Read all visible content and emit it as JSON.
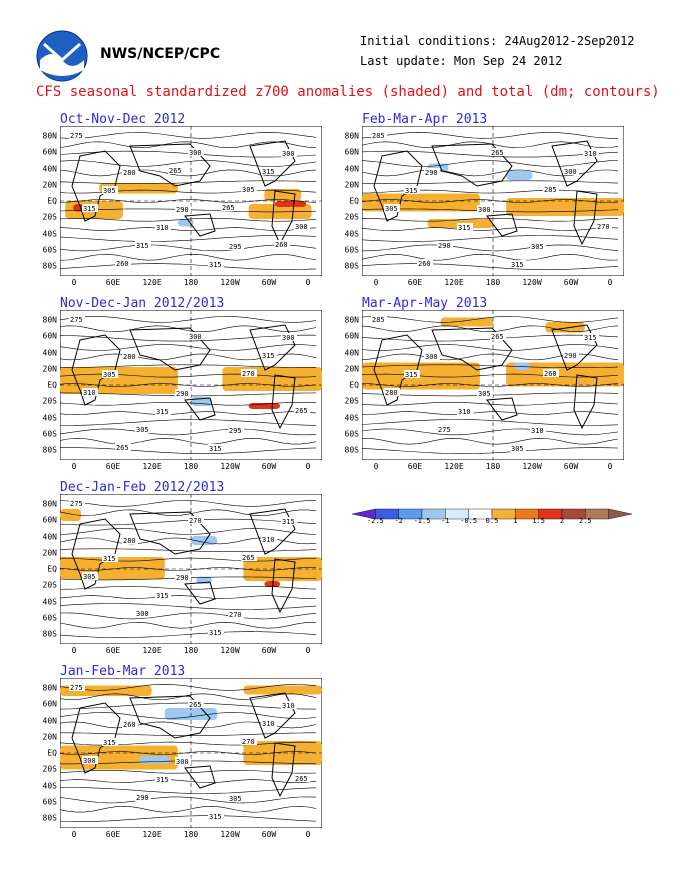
{
  "header": {
    "agency": "NWS/NCEP/CPC",
    "initial_conditions": "Initial conditions: 24Aug2012-2Sep2012",
    "last_update": "Last update: Mon Sep 24 2012",
    "subtitle": "CFS seasonal standardized z700 anomalies (shaded) and total (dm; contours)"
  },
  "colors": {
    "title_blue": "#2a2adf",
    "subtitle_red": "#e0101a",
    "positive_anomaly": "#f5b032",
    "strong_positive": "#e2321a",
    "negative_anomaly": "#9ec8f0"
  },
  "latitude_labels": [
    "80N",
    "60N",
    "40N",
    "20N",
    "EQ",
    "20S",
    "40S",
    "60S",
    "80S"
  ],
  "longitude_labels": [
    "0",
    "60E",
    "120E",
    "180",
    "120W",
    "60W",
    "0"
  ],
  "legend": {
    "values": [
      "-2.5",
      "-2",
      "-1.5",
      "-1",
      "-0.5",
      "0.5",
      "1",
      "1.5",
      "2",
      "2.5"
    ],
    "colors": [
      "#5a2ad0",
      "#3c5ee6",
      "#5d9af0",
      "#9ec8f0",
      "#d8ecfb",
      "#ffffff",
      "#f5b032",
      "#ef7a1a",
      "#e2321a",
      "#a34a3a",
      "#b07a5a",
      "#8a5a4a"
    ]
  },
  "panels": [
    {
      "title": "Oct-Nov-Dec 2012",
      "contour_labels": [
        "275",
        "280",
        "290",
        "295",
        "300",
        "305",
        "310",
        "315",
        "315",
        "315",
        "315",
        "300",
        "305",
        "300",
        "260",
        "265",
        "265",
        "260"
      ]
    },
    {
      "title": "Feb-Mar-Apr 2013",
      "contour_labels": [
        "285",
        "290",
        "300",
        "305",
        "310",
        "315",
        "315",
        "315",
        "300",
        "305",
        "290",
        "265",
        "285",
        "270",
        "260"
      ]
    },
    {
      "title": "Nov-Dec-Jan 2012/2013",
      "contour_labels": [
        "275",
        "280",
        "290",
        "295",
        "300",
        "305",
        "315",
        "315",
        "315",
        "310",
        "305",
        "300",
        "270",
        "265",
        "265"
      ]
    },
    {
      "title": "Mar-Apr-May 2013",
      "contour_labels": [
        "285",
        "300",
        "305",
        "310",
        "315",
        "315",
        "310",
        "305",
        "290",
        "280",
        "275",
        "265",
        "260"
      ]
    },
    {
      "title": "Dec-Jan-Feb 2012/2013",
      "contour_labels": [
        "275",
        "280",
        "290",
        "270",
        "315",
        "315",
        "315",
        "315",
        "310",
        "305",
        "300",
        "270",
        "265"
      ]
    },
    {
      "title": "Jan-Feb-Mar 2013",
      "contour_labels": [
        "275",
        "260",
        "300",
        "305",
        "310",
        "315",
        "315",
        "315",
        "310",
        "300",
        "290",
        "265",
        "270",
        "265"
      ]
    }
  ]
}
